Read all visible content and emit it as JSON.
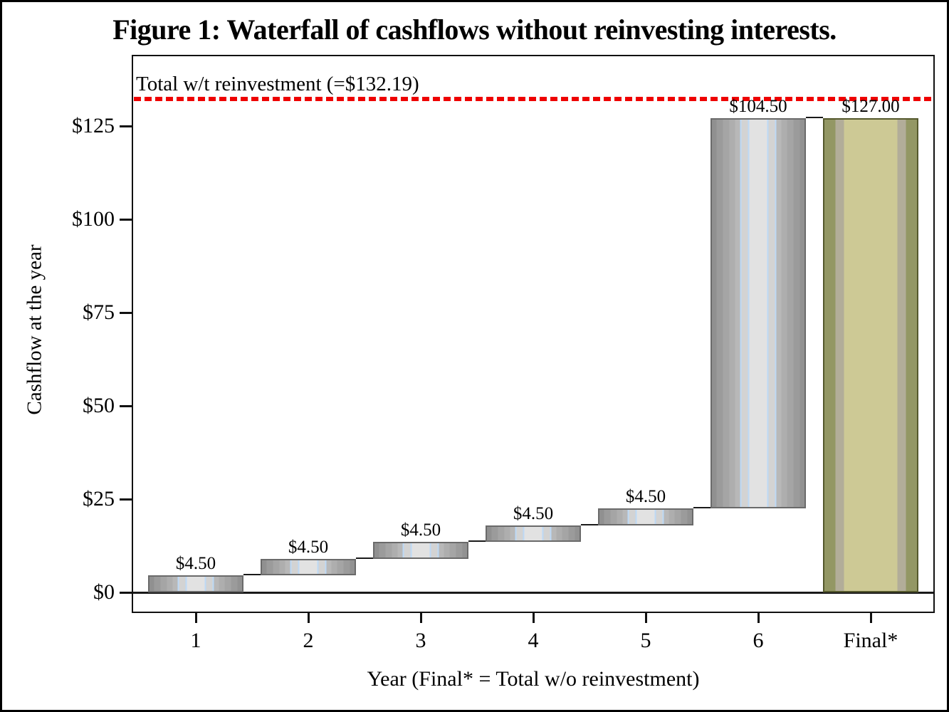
{
  "title": "Figure 1: Waterfall of cashflows without reinvesting interests.",
  "chart_data": {
    "type": "bar",
    "subtype": "waterfall",
    "title": "Figure 1: Waterfall of cashflows without reinvesting interests.",
    "xlabel": "Year (Final* = Total w/o reinvestment)",
    "ylabel": "Cashflow at the year",
    "categories": [
      "1",
      "2",
      "3",
      "4",
      "5",
      "6",
      "Final*"
    ],
    "bars": [
      {
        "category": "1",
        "start": 0,
        "end": 4.5,
        "label": "$4.50",
        "style": "steel"
      },
      {
        "category": "2",
        "start": 4.5,
        "end": 9,
        "label": "$4.50",
        "style": "steel"
      },
      {
        "category": "3",
        "start": 9,
        "end": 13.5,
        "label": "$4.50",
        "style": "steel"
      },
      {
        "category": "4",
        "start": 13.5,
        "end": 18,
        "label": "$4.50",
        "style": "steel"
      },
      {
        "category": "5",
        "start": 18,
        "end": 22.5,
        "label": "$4.50",
        "style": "steel"
      },
      {
        "category": "6",
        "start": 22.5,
        "end": 127,
        "label": "$104.50",
        "style": "steel"
      },
      {
        "category": "Final*",
        "start": 0,
        "end": 127,
        "label": "$127.00",
        "style": "olive"
      }
    ],
    "reference_line": {
      "value": 132.19,
      "label": "Total w/t reinvestment (=$132.19)",
      "color": "#ee0202",
      "style": "dashed"
    },
    "y_ticks": [
      {
        "value": 0,
        "label": "$0"
      },
      {
        "value": 25,
        "label": "$25"
      },
      {
        "value": 50,
        "label": "$50"
      },
      {
        "value": 75,
        "label": "$75"
      },
      {
        "value": 100,
        "label": "$100"
      },
      {
        "value": 125,
        "label": "$125"
      }
    ],
    "ylim": [
      -5.2,
      144
    ],
    "grid": false,
    "legend": false,
    "baseline_value": 0
  },
  "colors": {
    "background": "#ffffff",
    "frame": "#111111",
    "text": "#000000",
    "reference_red": "#ee0202",
    "steel_border": "#6a6a6a",
    "steel_light": "#e2e2e2",
    "steel_dark": "#909090",
    "steel_accent_blue": "#bdd9f5",
    "olive_border": "#54582c",
    "olive_light": "#cdc995",
    "olive_dark": "#939764"
  }
}
